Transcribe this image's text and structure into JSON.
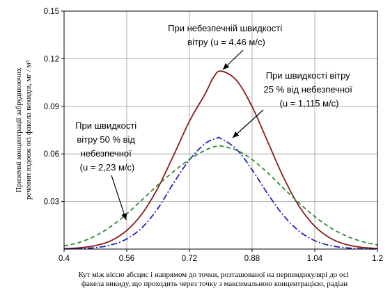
{
  "chart_data": {
    "type": "line",
    "xlabel_lines": [
      "Кут між віссю абсцис і напрямом до точки, розташованої на перпендикулярі до осі",
      "факела викиду, що проходить через точку з максимальною концентрацією, радіан"
    ],
    "ylabel_lines": [
      "Приземні концентрації забруднюючих",
      "речовин вздовж осі факела викидів, мг / м³"
    ],
    "xlim": [
      0.4,
      1.2
    ],
    "ylim": [
      0,
      0.15
    ],
    "x_ticks": [
      "0.4",
      "0.56",
      "0.72",
      "0.88",
      "1.04",
      "1.2"
    ],
    "x_tick_values": [
      0.4,
      0.56,
      0.72,
      0.88,
      1.04,
      1.2
    ],
    "y_ticks": [
      "0.03",
      "0.06",
      "0.09",
      "0.12",
      "0.15"
    ],
    "y_tick_values": [
      0.03,
      0.06,
      0.09,
      0.12,
      0.15
    ],
    "grid": true,
    "series": [
      {
        "color": "#8b1a1a",
        "dash": "solid",
        "x": [
          0.4,
          0.44,
          0.48,
          0.52,
          0.56,
          0.6,
          0.64,
          0.68,
          0.72,
          0.76,
          0.78,
          0.8,
          0.84,
          0.88,
          0.92,
          0.96,
          1.0,
          1.04,
          1.08,
          1.12,
          1.16,
          1.2
        ],
        "y": [
          0.0003,
          0.0008,
          0.0022,
          0.0053,
          0.0117,
          0.0226,
          0.0388,
          0.0593,
          0.0806,
          0.0978,
          0.1077,
          0.1122,
          0.1064,
          0.0898,
          0.0676,
          0.0453,
          0.027,
          0.0144,
          0.0068,
          0.0029,
          0.0011,
          0.0004
        ]
      },
      {
        "color": "#1f1fbf",
        "dash": "dashdot",
        "x": [
          0.4,
          0.44,
          0.48,
          0.52,
          0.56,
          0.6,
          0.64,
          0.68,
          0.72,
          0.76,
          0.79,
          0.8,
          0.84,
          0.88,
          0.92,
          0.96,
          1.0,
          1.04,
          1.08,
          1.12,
          1.16,
          1.2
        ],
        "y": [
          0.0001,
          0.0003,
          0.0009,
          0.0026,
          0.0064,
          0.0138,
          0.0258,
          0.0418,
          0.0562,
          0.0665,
          0.0699,
          0.0697,
          0.063,
          0.05,
          0.0348,
          0.0212,
          0.0113,
          0.0053,
          0.0022,
          0.0008,
          0.0002,
          0.0001
        ]
      },
      {
        "color": "#2e8b2e",
        "dash": "dashed",
        "x": [
          0.4,
          0.44,
          0.48,
          0.52,
          0.56,
          0.6,
          0.64,
          0.68,
          0.72,
          0.76,
          0.79,
          0.8,
          0.84,
          0.88,
          0.92,
          0.96,
          1.0,
          1.04,
          1.08,
          1.12,
          1.16,
          1.2
        ],
        "y": [
          0.002,
          0.0043,
          0.0083,
          0.0143,
          0.0222,
          0.0313,
          0.0405,
          0.049,
          0.0565,
          0.0623,
          0.0649,
          0.065,
          0.0624,
          0.0565,
          0.048,
          0.0384,
          0.029,
          0.0205,
          0.0135,
          0.0083,
          0.0048,
          0.0026
        ]
      }
    ],
    "annotations": [
      {
        "lines": [
          "При небезпечній швидкості",
          "вітру (u = 4,46 м/с)"
        ]
      },
      {
        "lines": [
          "При швидкості вітру",
          "25 % від небезпечної",
          "(u = 1,115 м/с)"
        ]
      },
      {
        "lines": [
          "При швидкості",
          "вітру 50 % від",
          "небезпечної",
          "(u = 2,23 м/с)"
        ]
      }
    ]
  }
}
